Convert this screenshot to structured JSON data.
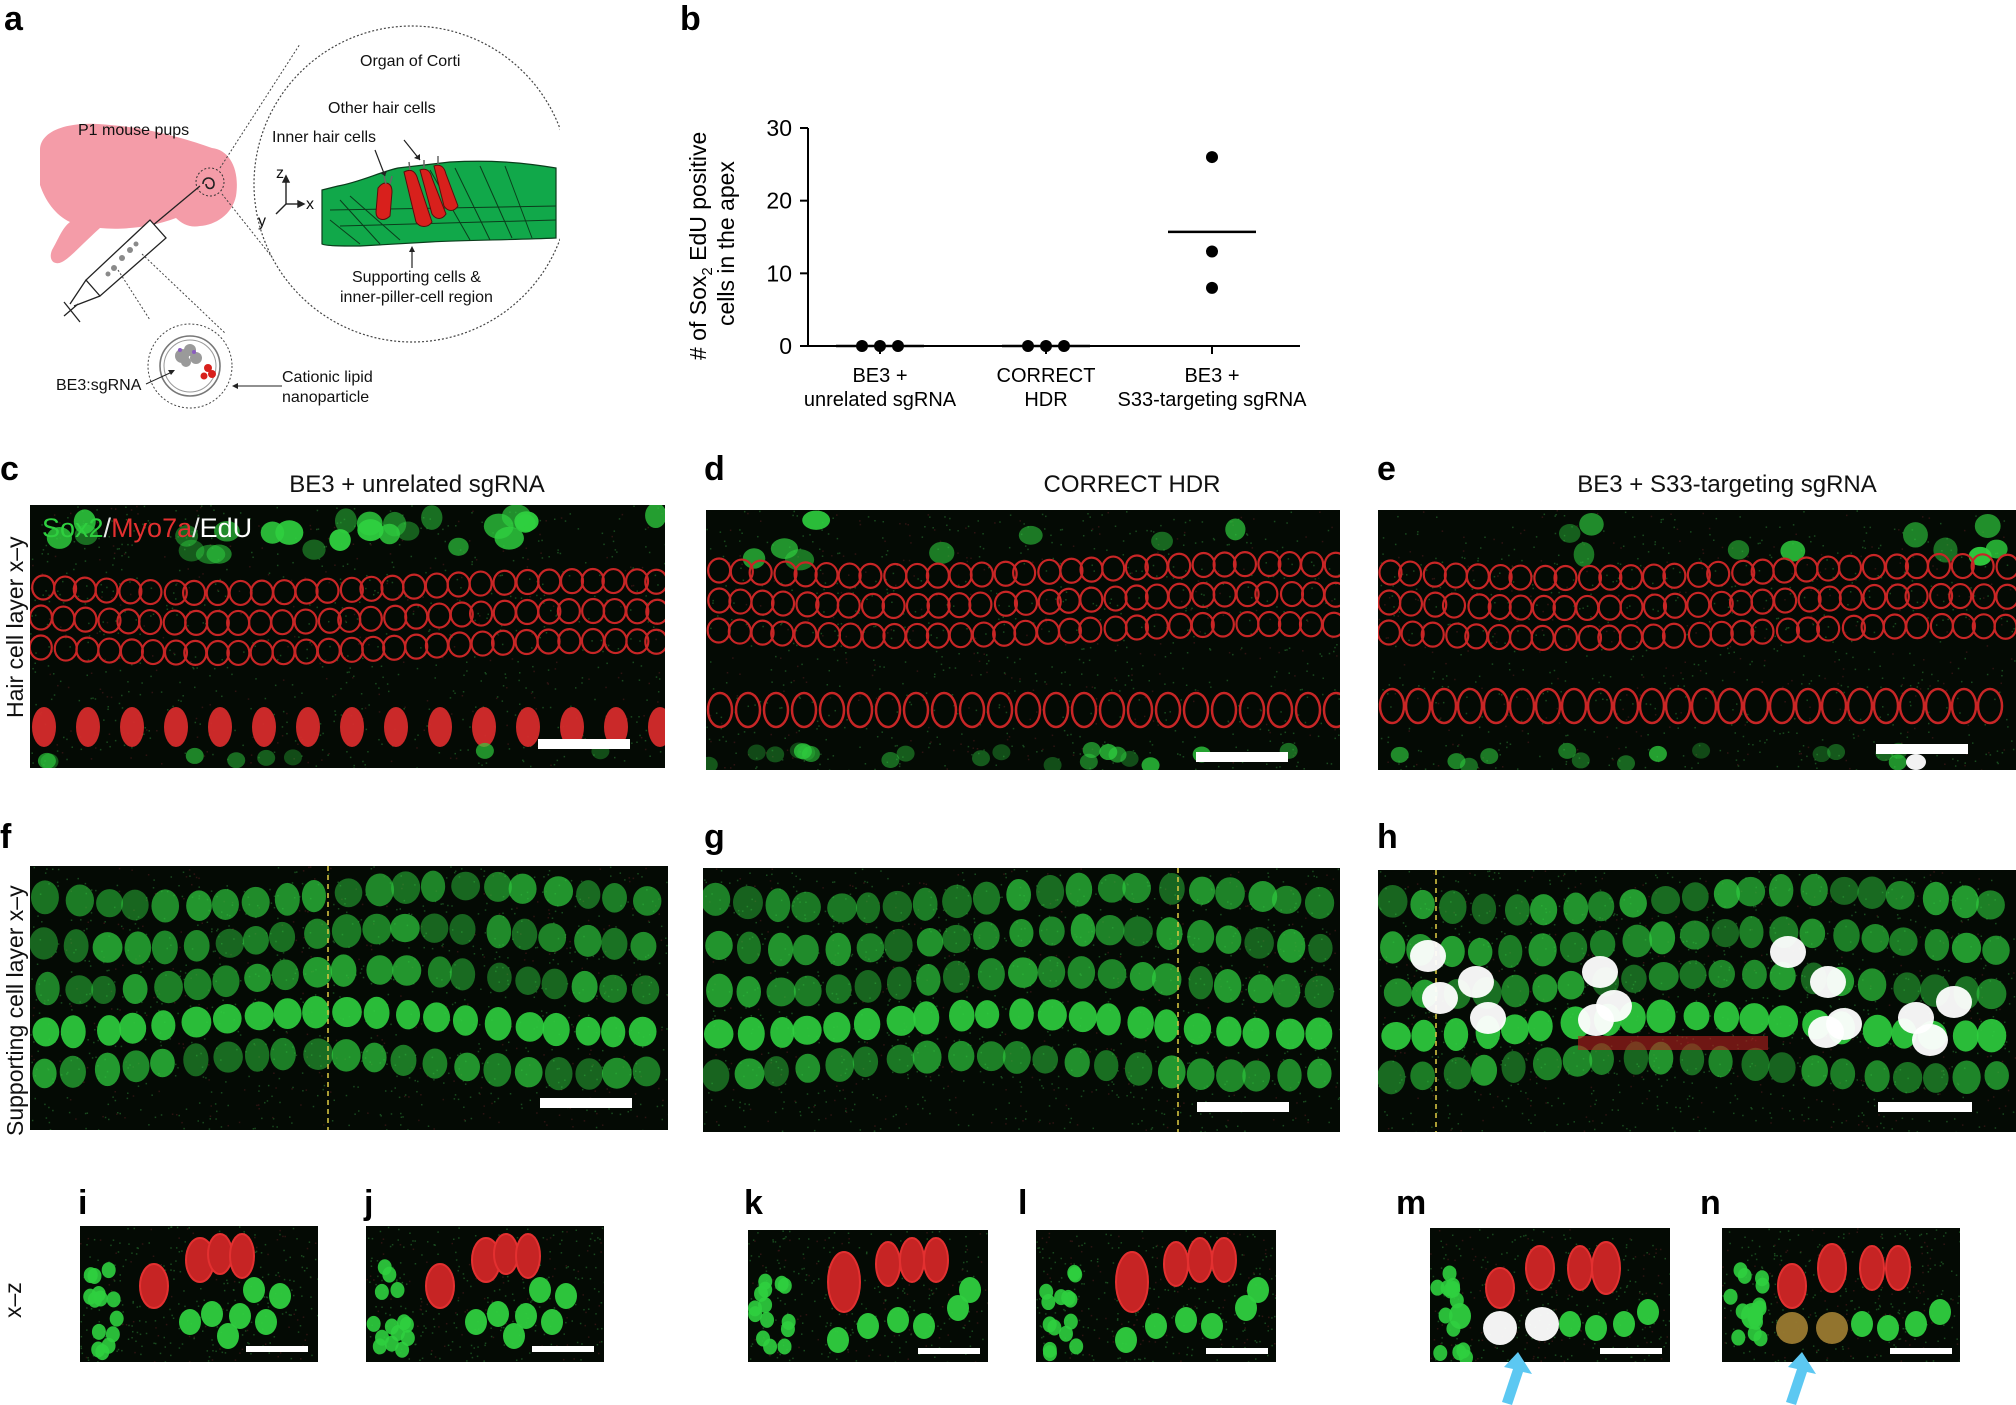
{
  "panel_letters": {
    "a": "a",
    "b": "b",
    "c": "c",
    "d": "d",
    "e": "e",
    "f": "f",
    "g": "g",
    "h": "h",
    "i": "i",
    "j": "j",
    "k": "k",
    "l": "l",
    "m": "m",
    "n": "n"
  },
  "schematic": {
    "organ_of_corti": "Organ of Corti",
    "p1_pups": "P1 mouse pups",
    "other_hair_cells": "Other hair cells",
    "inner_hair_cells": "Inner hair cells",
    "axis_z": "z",
    "axis_x": "x",
    "axis_y": "y",
    "supporting_line1": "Supporting cells &",
    "supporting_line2": "inner-piller-cell region",
    "be3_sgrna": "BE3:sgRNA",
    "lipid_line1": "Cationic lipid",
    "lipid_line2": "nanoparticle"
  },
  "column_titles": {
    "c": "BE3 + unrelated sgRNA",
    "d": "CORRECT HDR",
    "e": "BE3 + S33-targeting sgRNA"
  },
  "row_labels": {
    "hair": "Hair cell layer x–y",
    "supporting": "Supporting cell layer x–y",
    "xz": "x–z"
  },
  "stain_legend": {
    "sox2": "Sox2",
    "sep1": "/",
    "myo7a": "Myo7a",
    "sep2": "/",
    "edu": "EdU"
  },
  "colors": {
    "sox2": "#2fcf3f",
    "myo7a": "#e33030",
    "edu": "#ffffff",
    "mouse": "#f49ca8",
    "corti_green": "#11a84a",
    "hair_red": "#d8201c",
    "arrow_blue": "#5cc8f2",
    "guide_yellow": "#d4c240"
  },
  "chart_data": {
    "type": "scatter",
    "title": "",
    "ylabel_prefix": "# of Sox",
    "ylabel_sub": "2",
    "ylabel_suffix": " EdU positive",
    "ylabel_line2": "cells in the apex",
    "ylim": [
      0,
      30
    ],
    "yticks": [
      "0",
      "10",
      "20",
      "30"
    ],
    "categories": [
      [
        "BE3 +",
        "unrelated sgRNA"
      ],
      [
        "CORRECT",
        "HDR"
      ],
      [
        "BE3 +",
        "S33-targeting sgRNA"
      ]
    ],
    "points": [
      [
        0,
        0,
        0
      ],
      [
        0,
        0,
        0
      ],
      [
        26,
        13,
        8
      ]
    ],
    "means": [
      0,
      0,
      15.7
    ]
  }
}
